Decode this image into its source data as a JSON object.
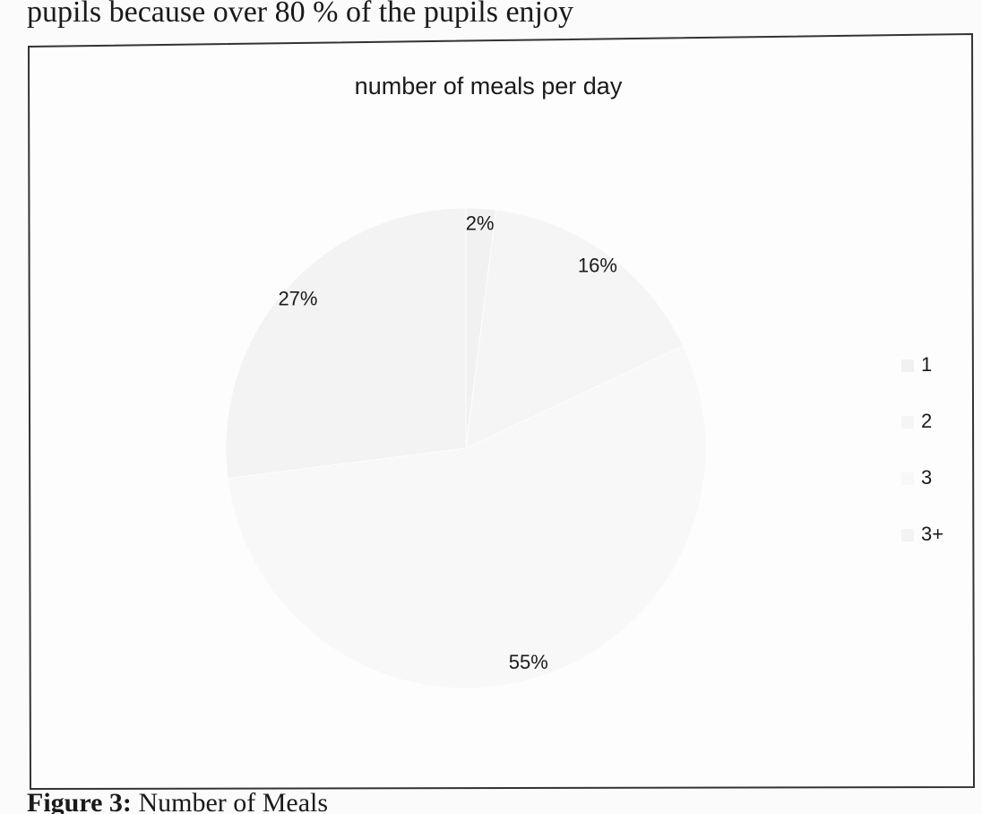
{
  "text_above": "pupils because over 80 % of the pupils enjoy",
  "chart_data": {
    "type": "pie",
    "title": "number of meals per day",
    "categories": [
      "1",
      "2",
      "3",
      "3+"
    ],
    "values": [
      2,
      16,
      55,
      27
    ],
    "value_labels": [
      "2%",
      "16%",
      "55%",
      "27%"
    ],
    "colors": [
      "#f1f1f1",
      "#f5f5f5",
      "#f8f8f8",
      "#f3f3f3"
    ],
    "legend": "right"
  },
  "caption": {
    "label": "Figure 3:",
    "text": "Number of Meals"
  }
}
